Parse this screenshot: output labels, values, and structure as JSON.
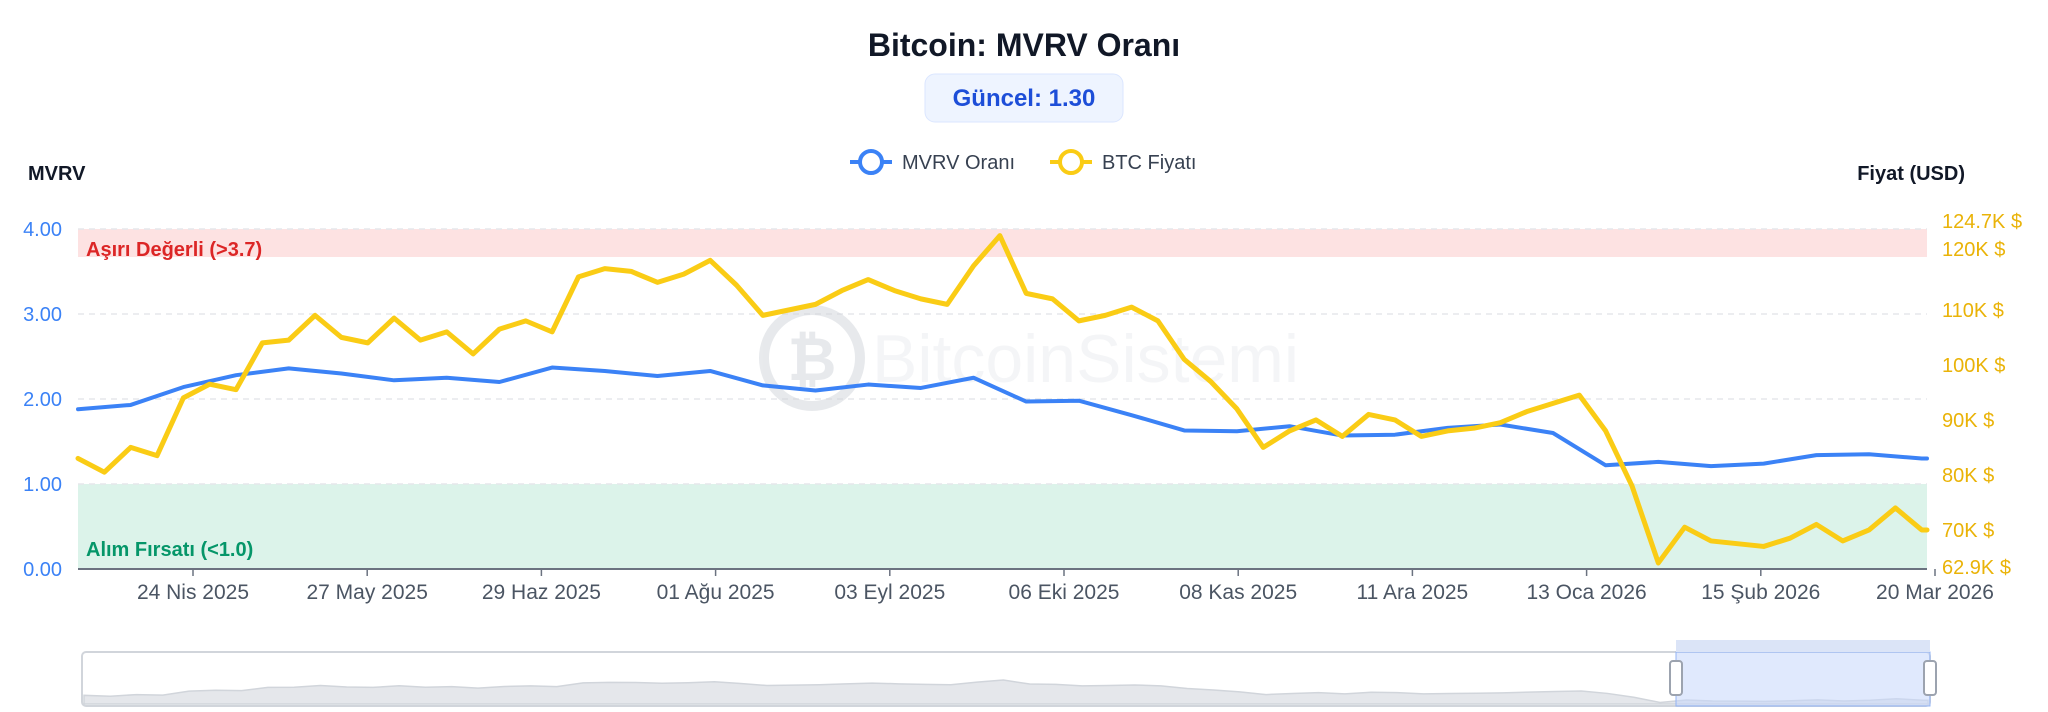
{
  "title": "Bitcoin: MVRV Oranı",
  "badge": "Güncel: 1.30",
  "watermark": "BitcoinSistemi",
  "colors": {
    "mvrv": "#3b82f6",
    "price": "#facc15",
    "overvalued_zone": "#fde2e2",
    "buy_zone": "#dcf3ea"
  },
  "chart_data": {
    "type": "line",
    "title": "Bitcoin: MVRV Oranı",
    "ylabel_left": "MVRV",
    "ylabel_right": "Fiyat (USD)",
    "y_left_ticks": [
      "4.00",
      "3.00",
      "2.00",
      "1.00",
      "0.00"
    ],
    "y_left_range": [
      0,
      4
    ],
    "y_right_ticks": [
      "124.7K $",
      "120K $",
      "110K $",
      "100K $",
      "90K $",
      "80K $",
      "70K $",
      "62.9K $"
    ],
    "y_right_range": [
      62.9,
      124.7
    ],
    "x_ticks": [
      "24 Nis 2025",
      "27 May 2025",
      "29 Haz 2025",
      "01 Ağu 2025",
      "03 Eyl 2025",
      "06 Eki 2025",
      "08 Kas 2025",
      "11 Ara 2025",
      "13 Oca 2026",
      "15 Şub 2026",
      "20 Mar 2026"
    ],
    "grid": true,
    "legend_position": "top-center",
    "zones": [
      {
        "label": "Aşırı Değerli (>3.7)",
        "from": 3.7,
        "to": 4.0
      },
      {
        "label": "Alım Fırsatı (<1.0)",
        "from": 0.0,
        "to": 1.0
      }
    ],
    "series": [
      {
        "name": "MVRV Oranı",
        "axis": "left",
        "x": [
          0,
          10,
          20,
          30,
          40,
          50,
          60,
          70,
          80,
          90,
          100,
          110,
          120,
          130,
          140,
          150,
          160,
          170,
          180,
          190,
          200,
          210,
          220,
          230,
          240,
          250,
          260,
          270,
          280,
          290,
          300,
          310,
          320,
          330,
          340,
          350,
          351
        ],
        "values": [
          1.88,
          1.93,
          2.14,
          2.28,
          2.36,
          2.3,
          2.22,
          2.25,
          2.2,
          2.37,
          2.33,
          2.27,
          2.33,
          2.16,
          2.1,
          2.17,
          2.13,
          2.25,
          1.97,
          1.98,
          1.81,
          1.63,
          1.62,
          1.68,
          1.57,
          1.58,
          1.66,
          1.7,
          1.6,
          1.22,
          1.26,
          1.21,
          1.24,
          1.34,
          1.35,
          1.3,
          1.3
        ]
      },
      {
        "name": "BTC Fiyatı",
        "axis": "right",
        "x": [
          0,
          5,
          10,
          15,
          20,
          25,
          30,
          35,
          40,
          45,
          50,
          55,
          60,
          65,
          70,
          75,
          80,
          85,
          90,
          95,
          100,
          105,
          110,
          115,
          120,
          125,
          130,
          135,
          140,
          145,
          150,
          155,
          160,
          165,
          170,
          175,
          180,
          185,
          190,
          195,
          200,
          205,
          210,
          215,
          220,
          225,
          230,
          235,
          240,
          245,
          250,
          255,
          260,
          265,
          270,
          275,
          280,
          285,
          290,
          295,
          300,
          305,
          310,
          315,
          320,
          325,
          330,
          335,
          340,
          345,
          350,
          351
        ],
        "values": [
          83.0,
          80.5,
          85.0,
          83.5,
          94.0,
          96.5,
          95.5,
          104.0,
          104.5,
          109.0,
          105.0,
          104.0,
          108.5,
          104.5,
          106.0,
          102.0,
          106.5,
          108.0,
          106.0,
          116.0,
          117.5,
          117.0,
          115.0,
          116.5,
          119.0,
          114.5,
          109.0,
          110.0,
          111.0,
          113.5,
          115.5,
          113.5,
          112.0,
          111.0,
          118.0,
          123.5,
          113.0,
          112.0,
          108.0,
          109.0,
          110.5,
          108.0,
          101.0,
          97.0,
          92.0,
          85.0,
          88.0,
          90.0,
          87.0,
          91.0,
          90.0,
          87.0,
          88.0,
          88.5,
          89.5,
          91.5,
          93.0,
          94.5,
          88.0,
          78.0,
          64.0,
          70.5,
          68.0,
          67.5,
          67.0,
          68.5,
          71.0,
          68.0,
          70.0,
          74.0,
          70.0,
          70.0
        ]
      }
    ]
  }
}
